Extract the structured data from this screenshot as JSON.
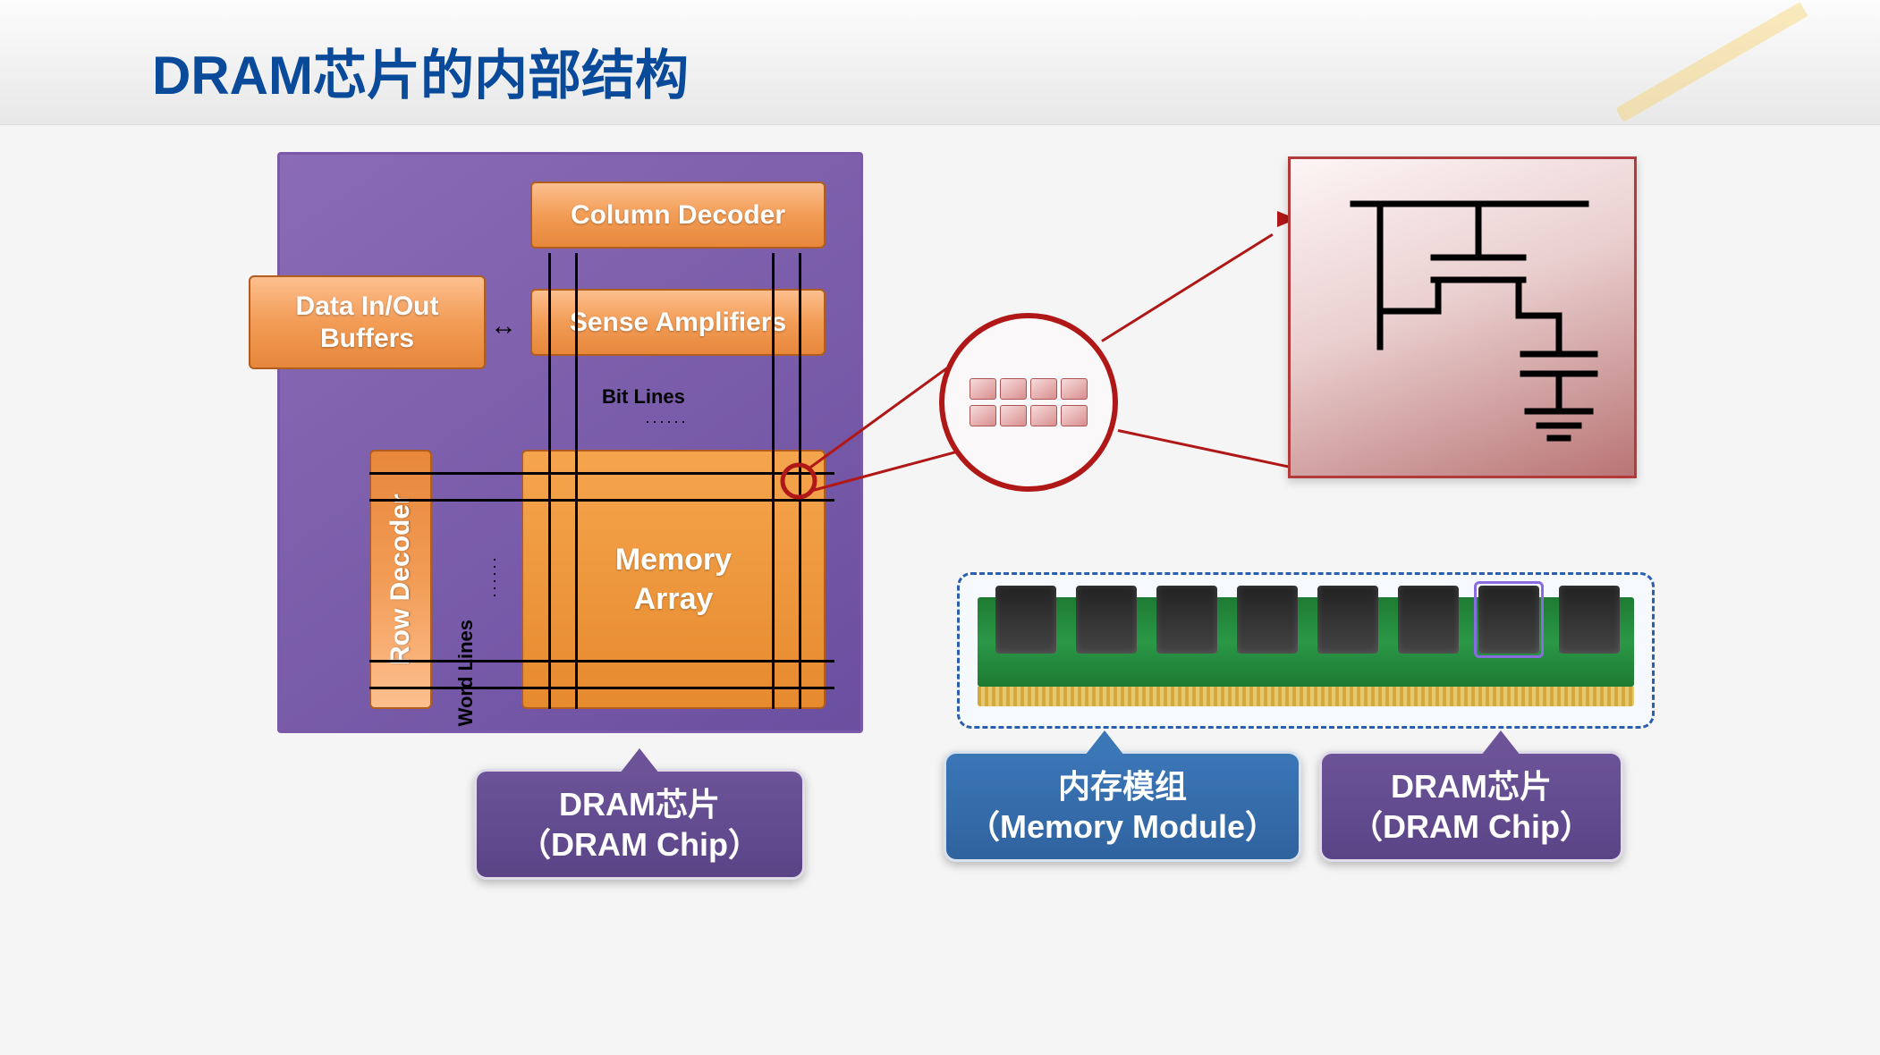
{
  "title": "DRAM芯片的内部结构",
  "colors": {
    "title": "#0a4a9a",
    "chip_bg_top": "#8a6bb5",
    "chip_bg_bottom": "#6b4fa0",
    "orange_top": "#fdbf8e",
    "orange_bottom": "#e7873b",
    "memory_array": "#e68a2e",
    "callout_purple": "#6c5398",
    "callout_blue": "#3b76b7",
    "magnifier_border": "#b01717",
    "cell_panel_border": "#b23a3a",
    "module_border": "#2a5fb0",
    "pcb_green": "#2a9847",
    "gold": "#d4a93c",
    "chip_black": "#333333",
    "highlight_purple": "#8a6be0"
  },
  "chip": {
    "column_decoder": "Column Decoder",
    "sense_amplifiers": "Sense Amplifiers",
    "data_buffers": "Data In/Out\nBuffers",
    "row_decoder": "Row Decoder",
    "memory_array": "Memory\nArray",
    "bit_lines": "Bit Lines",
    "word_lines": "Word Lines"
  },
  "magnifier": {
    "rows": 2,
    "cols": 4
  },
  "callouts": {
    "left_line1": "DRAM芯片",
    "left_line2": "（DRAM Chip）",
    "mid_line1": "内存模组",
    "mid_line2": "（Memory Module）",
    "right_line1": "DRAM芯片",
    "right_line2": "（DRAM Chip）"
  },
  "module": {
    "chip_count": 8,
    "highlighted_index": 6
  },
  "transistor_cell": {
    "type": "1T1C DRAM cell schematic (wordline, bitline, transistor, capacitor to ground)"
  }
}
